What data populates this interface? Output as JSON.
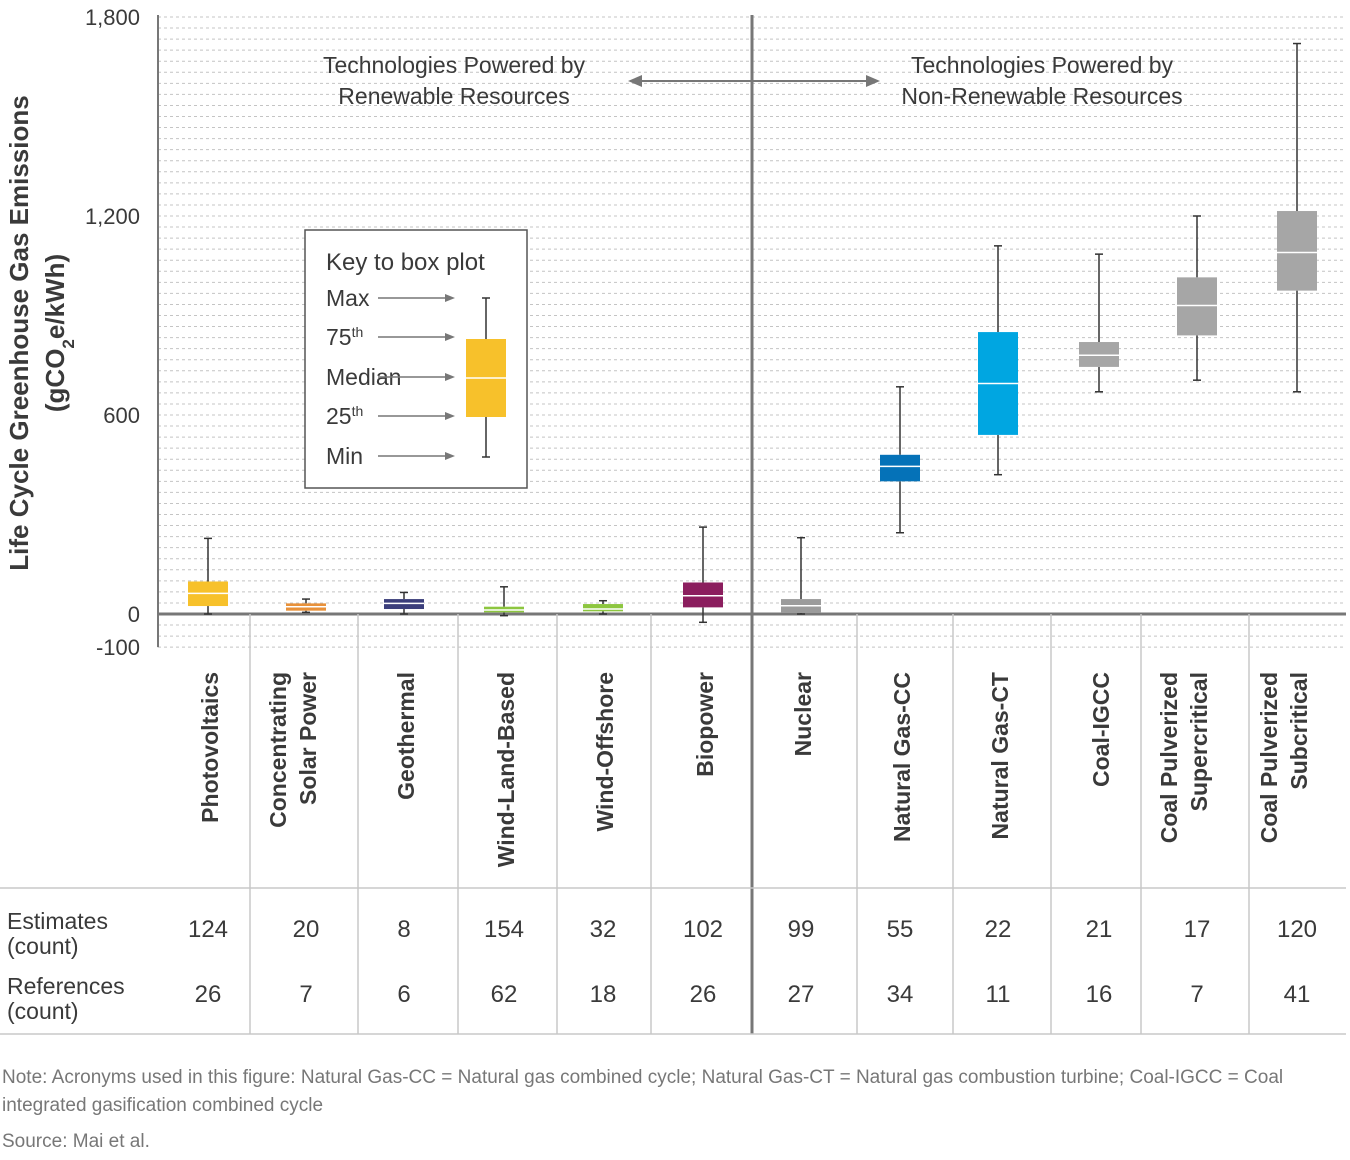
{
  "chart_data": {
    "type": "box",
    "ylabel": "Life Cycle Greenhouse Gas Emissions",
    "ylabel_units": "(gCO2e/kWh)",
    "ylim": [
      -100,
      1800
    ],
    "yticks": [
      {
        "value": 1800,
        "label": "1,800"
      },
      {
        "value": 1200,
        "label": "1,200"
      },
      {
        "value": 600,
        "label": "600"
      },
      {
        "value": 0,
        "label": "0"
      },
      {
        "value": -100,
        "label": "-100"
      }
    ],
    "groups": {
      "renewable": {
        "line1": "Technologies Powered by",
        "line2": "Renewable Resources"
      },
      "nonrenewable": {
        "line1": "Technologies Powered by",
        "line2": "Non-Renewable Resources"
      }
    },
    "categories": [
      {
        "label": [
          "Photovoltaics"
        ],
        "group": "renewable",
        "color": "#F7C12B",
        "min": 0,
        "q1": 24,
        "median": 62,
        "q3": 98,
        "max": 228,
        "estimates": "124",
        "references": "26"
      },
      {
        "label": [
          "Concentrating",
          "Solar Power"
        ],
        "group": "renewable",
        "color": "#E8913A",
        "min": 5,
        "q1": 10,
        "median": 22,
        "q3": 32,
        "max": 45,
        "estimates": "20",
        "references": "7"
      },
      {
        "label": [
          "Geothermal"
        ],
        "group": "renewable",
        "color": "#3B3E7B",
        "min": 0,
        "q1": 15,
        "median": 32,
        "q3": 45,
        "max": 65,
        "estimates": "8",
        "references": "6"
      },
      {
        "label": [
          "Wind-Land-Based"
        ],
        "group": "renewable",
        "color": "#8DC63F",
        "min": -5,
        "q1": 5,
        "median": 12,
        "q3": 22,
        "max": 82,
        "estimates": "154",
        "references": "62"
      },
      {
        "label": [
          "Wind-Offshore"
        ],
        "group": "renewable",
        "color": "#8DC63F",
        "min": 0,
        "q1": 8,
        "median": 15,
        "q3": 30,
        "max": 40,
        "estimates": "32",
        "references": "18"
      },
      {
        "label": [
          "Biopower"
        ],
        "group": "renewable",
        "color": "#8B1E5E",
        "min": -25,
        "q1": 20,
        "median": 55,
        "q3": 95,
        "max": 262,
        "estimates": "102",
        "references": "26"
      },
      {
        "label": [
          "Nuclear"
        ],
        "group": "nonrenewable",
        "color": "#9B9B9B",
        "min": 0,
        "q1": 3,
        "median": 25,
        "q3": 45,
        "max": 230,
        "estimates": "99",
        "references": "27"
      },
      {
        "label": [
          "Natural Gas-CC"
        ],
        "group": "nonrenewable",
        "color": "#0572B8",
        "min": 245,
        "q1": 400,
        "median": 445,
        "q3": 480,
        "max": 685,
        "estimates": "55",
        "references": "34"
      },
      {
        "label": [
          "Natural Gas-CT"
        ],
        "group": "nonrenewable",
        "color": "#00A6E1",
        "min": 420,
        "q1": 540,
        "median": 695,
        "q3": 850,
        "max": 1110,
        "estimates": "22",
        "references": "11"
      },
      {
        "label": [
          "Coal-IGCC"
        ],
        "group": "nonrenewable",
        "color": "#A6A6A6",
        "min": 670,
        "q1": 745,
        "median": 780,
        "q3": 820,
        "max": 1085,
        "estimates": "21",
        "references": "16"
      },
      {
        "label": [
          "Coal Pulverized",
          "Supercritical"
        ],
        "group": "nonrenewable",
        "color": "#A6A6A6",
        "min": 705,
        "q1": 840,
        "median": 930,
        "q3": 1015,
        "max": 1200,
        "estimates": "17",
        "references": "7"
      },
      {
        "label": [
          "Coal Pulverized",
          "Subcritical"
        ],
        "group": "nonrenewable",
        "color": "#A6A6A6",
        "min": 670,
        "q1": 975,
        "median": 1090,
        "q3": 1215,
        "max": 1720,
        "estimates": "120",
        "references": "41"
      }
    ],
    "key": {
      "title": "Key to box plot",
      "labels": [
        {
          "text": "Max",
          "sup": ""
        },
        {
          "text": "75",
          "sup": "th"
        },
        {
          "text": "Median",
          "sup": ""
        },
        {
          "text": "25",
          "sup": "th"
        },
        {
          "text": "Min",
          "sup": ""
        }
      ],
      "color": "#F7C12B"
    },
    "table": {
      "row1_label": [
        "Estimates",
        "(count)"
      ],
      "row2_label": [
        "References",
        "(count)"
      ]
    }
  },
  "note": "Note: Acronyms used in this figure: Natural Gas-CC = Natural gas combined cycle; Natural Gas-CT = Natural gas combustion turbine; Coal-IGCC = Coal integrated gasification combined cycle",
  "source": "Source: Mai et al."
}
